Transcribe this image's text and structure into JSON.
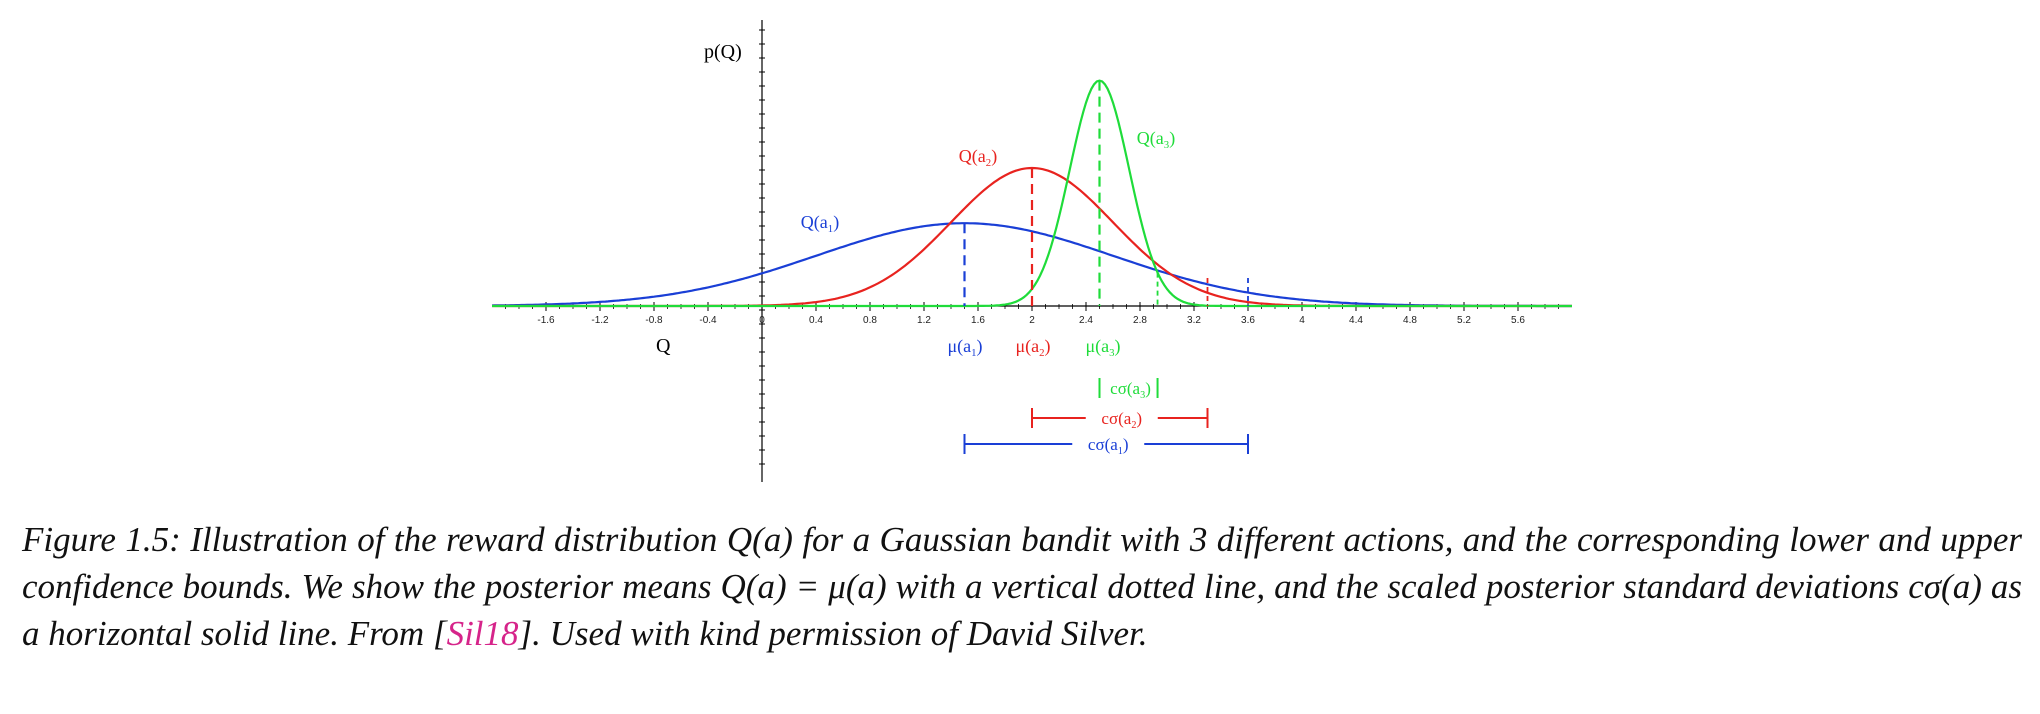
{
  "chart_data": {
    "type": "line",
    "title": "",
    "xlabel": "Q",
    "ylabel": "p(Q)",
    "xlim": [
      -2.0,
      6.0
    ],
    "grid": false,
    "x_ticks": [
      "-1.6",
      "-1.2",
      "-0.8",
      "-0.4",
      "0",
      "0.4",
      "0.8",
      "1.2",
      "1.6",
      "2",
      "2.4",
      "2.8",
      "3.2",
      "3.6",
      "4",
      "4.4",
      "4.8",
      "5.2",
      "5.6"
    ],
    "series": [
      {
        "name": "Q(a",
        "sub": "1",
        "close": ")",
        "color": "#1a3fd6",
        "mean": 1.5,
        "sigma": 1.1,
        "peak": 0.36,
        "conf_lower": 1.5,
        "conf_upper": 3.6,
        "mean_label": "μ(a",
        "conf_label": "cσ(a"
      },
      {
        "name": "Q(a",
        "sub": "2",
        "close": ")",
        "color": "#e8231f",
        "mean": 2.0,
        "sigma": 0.6,
        "peak": 0.6,
        "conf_lower": 2.0,
        "conf_upper": 3.3,
        "mean_label": "μ(a",
        "conf_label": "cσ(a"
      },
      {
        "name": "Q(a",
        "sub": "3",
        "close": ")",
        "color": "#1fdc3a",
        "mean": 2.5,
        "sigma": 0.22,
        "peak": 0.98,
        "conf_lower": 2.5,
        "conf_upper": 2.93,
        "mean_label": "μ(a",
        "conf_label": "cσ(a"
      }
    ]
  },
  "caption": {
    "lead": "Figure 1.5: Illustration of the reward distribution Q(a) for a Gaussian bandit with 3 different actions, and the corresponding lower and upper confidence bounds. We show the posterior means Q(a) = μ(a) with a vertical dotted line, and the scaled posterior standard deviations cσ(a) as a horizontal solid line. From [",
    "citation": "Sil18",
    "tail": "]. Used with kind permission of David Silver."
  }
}
